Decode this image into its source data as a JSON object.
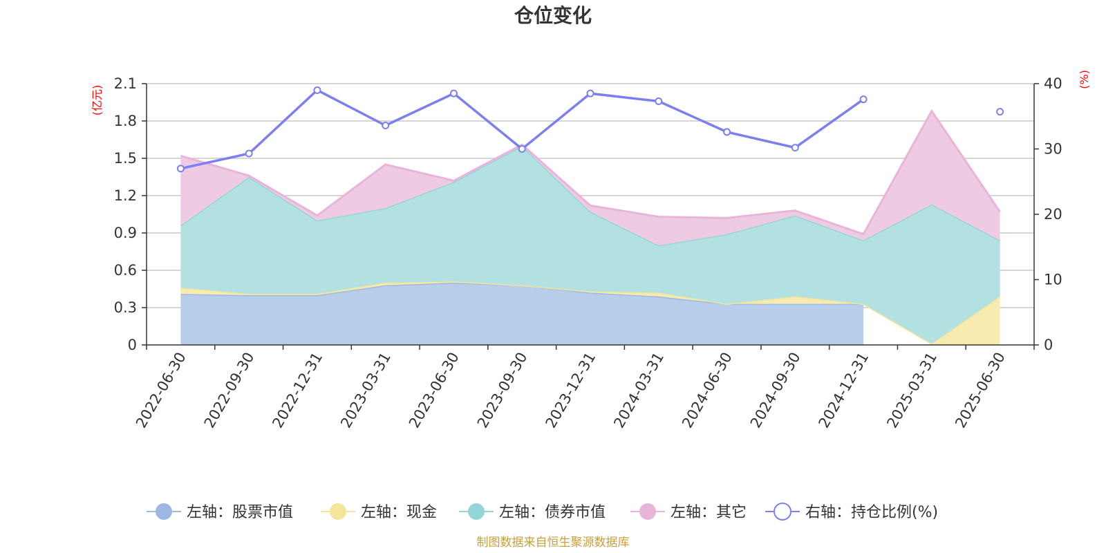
{
  "chart_data": {
    "type": "area",
    "title": "仓位变化",
    "left_axis": {
      "unit": "(亿元)",
      "ylim": [
        0,
        2.1
      ],
      "ticks": [
        "0",
        "0.3",
        "0.6",
        "0.9",
        "1.2",
        "1.5",
        "1.8",
        "2.1"
      ]
    },
    "right_axis": {
      "unit": "(%)",
      "ylim": [
        0,
        40
      ],
      "ticks": [
        "0",
        "10",
        "20",
        "30",
        "40"
      ]
    },
    "categories": [
      "2022-06-30",
      "2022-09-30",
      "2022-12-31",
      "2023-03-31",
      "2023-06-30",
      "2023-09-30",
      "2023-12-31",
      "2024-03-31",
      "2024-06-30",
      "2024-09-30",
      "2024-12-31",
      "2025-03-31",
      "2025-06-30"
    ],
    "series": [
      {
        "name": "左轴：股票市值",
        "type": "area",
        "axis": "left",
        "color": "#9db8e1",
        "fill": "#b8cdea",
        "values": [
          0.41,
          0.4,
          0.4,
          0.48,
          0.5,
          0.48,
          0.42,
          0.39,
          0.33,
          0.33,
          0.33,
          null,
          null
        ]
      },
      {
        "name": "左轴：现金",
        "type": "area",
        "axis": "left",
        "color": "#f5e59b",
        "fill": "#f7ebb0",
        "values": [
          0.05,
          0.01,
          0.01,
          0.02,
          0.01,
          0.0,
          0.01,
          0.03,
          0.0,
          0.06,
          0.0,
          0.01,
          0.39
        ]
      },
      {
        "name": "左轴：债券市值",
        "type": "area",
        "axis": "left",
        "color": "#94d5d8",
        "fill": "#b3e1e2",
        "values": [
          0.5,
          0.94,
          0.59,
          0.6,
          0.8,
          1.12,
          0.64,
          0.38,
          0.56,
          0.65,
          0.51,
          1.12,
          0.45
        ]
      },
      {
        "name": "左轴：其它",
        "type": "area",
        "axis": "left",
        "color": "#e8b4da",
        "fill": "#eecbe3",
        "values": [
          0.56,
          0.01,
          0.04,
          0.35,
          0.01,
          0.01,
          0.05,
          0.23,
          0.13,
          0.04,
          0.05,
          0.75,
          0.23
        ]
      },
      {
        "name": "右轴：持仓比例(%)",
        "type": "line",
        "axis": "right",
        "color": "#7b7ff0",
        "values": [
          27.0,
          29.3,
          39.0,
          33.6,
          38.5,
          30.0,
          38.5,
          37.3,
          32.6,
          30.2,
          37.6,
          null,
          35.7
        ]
      }
    ],
    "legend_position": "bottom",
    "grid": true
  },
  "footer": {
    "source": "制图数据来自恒生聚源数据库"
  }
}
